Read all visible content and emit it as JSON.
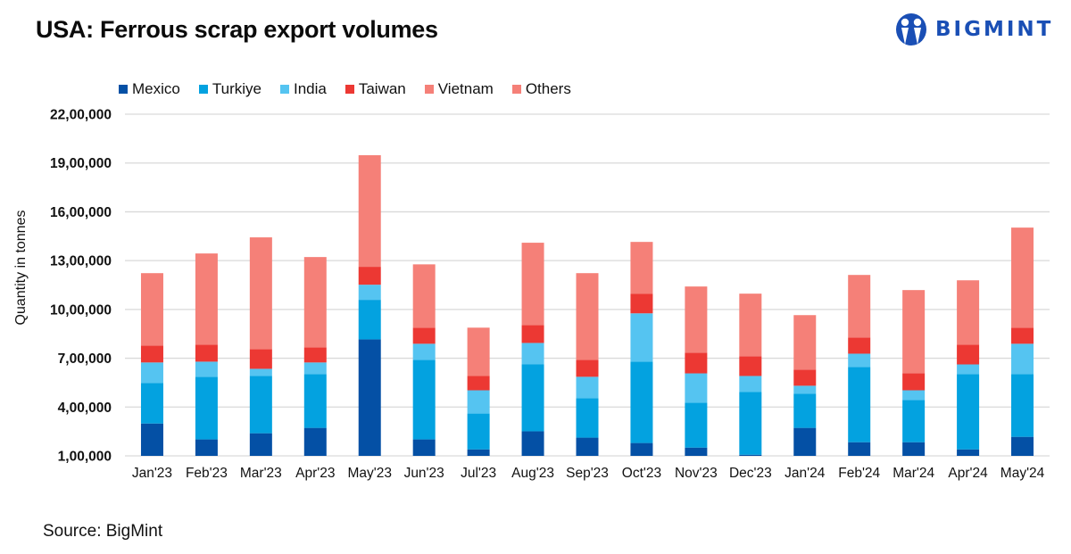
{
  "header": {
    "title": "USA: Ferrous scrap export volumes",
    "brand": "BIGMINT"
  },
  "source": "Source: BigMint",
  "colors": {
    "Mexico": "#0450a5",
    "Turkiye": "#03a2e0",
    "India": "#55c4f1",
    "Taiwan": "#ec3833",
    "Vietnam": "#f58078",
    "Others": "#f58078",
    "brand": "#1a4fb5",
    "grid": "#d9d9d9"
  },
  "chart_data": {
    "type": "bar",
    "stacked": true,
    "title": "USA: Ferrous scrap export volumes",
    "xlabel": "",
    "ylabel": "Quantity in tonnes",
    "ylim": [
      100000,
      2200000
    ],
    "yticks": [
      100000,
      400000,
      700000,
      1000000,
      1300000,
      1600000,
      1900000,
      2200000
    ],
    "ytick_labels": [
      "1,00,000",
      "4,00,000",
      "7,00,000",
      "10,00,000",
      "13,00,000",
      "16,00,000",
      "19,00,000",
      "22,00,000"
    ],
    "grid": true,
    "legend_position": "top",
    "categories": [
      "Jan'23",
      "Feb'23",
      "Mar'23",
      "Apr'23",
      "May'23",
      "Jun'23",
      "Jul'23",
      "Aug'23",
      "Sep'23",
      "Oct'23",
      "Nov'23",
      "Dec'23",
      "Jan'24",
      "Feb'24",
      "Mar'24",
      "Apr'24",
      "May'24"
    ],
    "series": [
      {
        "name": "Mexico",
        "values": [
          299000,
          201000,
          239000,
          272000,
          816000,
          201000,
          140000,
          251000,
          212000,
          179000,
          151000,
          107000,
          272000,
          184000,
          184000,
          140000,
          217000
        ]
      },
      {
        "name": "Turkiye",
        "values": [
          248000,
          385000,
          352000,
          330000,
          243000,
          489000,
          220000,
          411000,
          242000,
          500000,
          275000,
          385000,
          209000,
          462000,
          259000,
          462000,
          385000
        ]
      },
      {
        "name": "India",
        "values": [
          127000,
          93000,
          44000,
          72000,
          93000,
          99000,
          143000,
          132000,
          132000,
          297000,
          181000,
          99000,
          50000,
          82000,
          60000,
          60000,
          187000
        ]
      },
      {
        "name": "Taiwan",
        "values": [
          104000,
          105000,
          121000,
          93000,
          110000,
          99000,
          88000,
          110000,
          104000,
          121000,
          127000,
          121000,
          99000,
          99000,
          105000,
          122000,
          99000
        ]
      },
      {
        "name": "Vietnam",
        "values": [
          0,
          0,
          0,
          0,
          0,
          0,
          0,
          0,
          0,
          0,
          0,
          0,
          0,
          0,
          0,
          0,
          0
        ]
      },
      {
        "name": "Others",
        "values": [
          445000,
          560000,
          687000,
          555000,
          686000,
          389000,
          297000,
          506000,
          533000,
          318000,
          407000,
          385000,
          335000,
          385000,
          511000,
          395000,
          615000
        ]
      }
    ],
    "note": "Vietnam and Others share the same salmon color; no visible boundary, top segment recorded under Others. First segment values are read from axis value (axis begins at 1,00,000)."
  }
}
